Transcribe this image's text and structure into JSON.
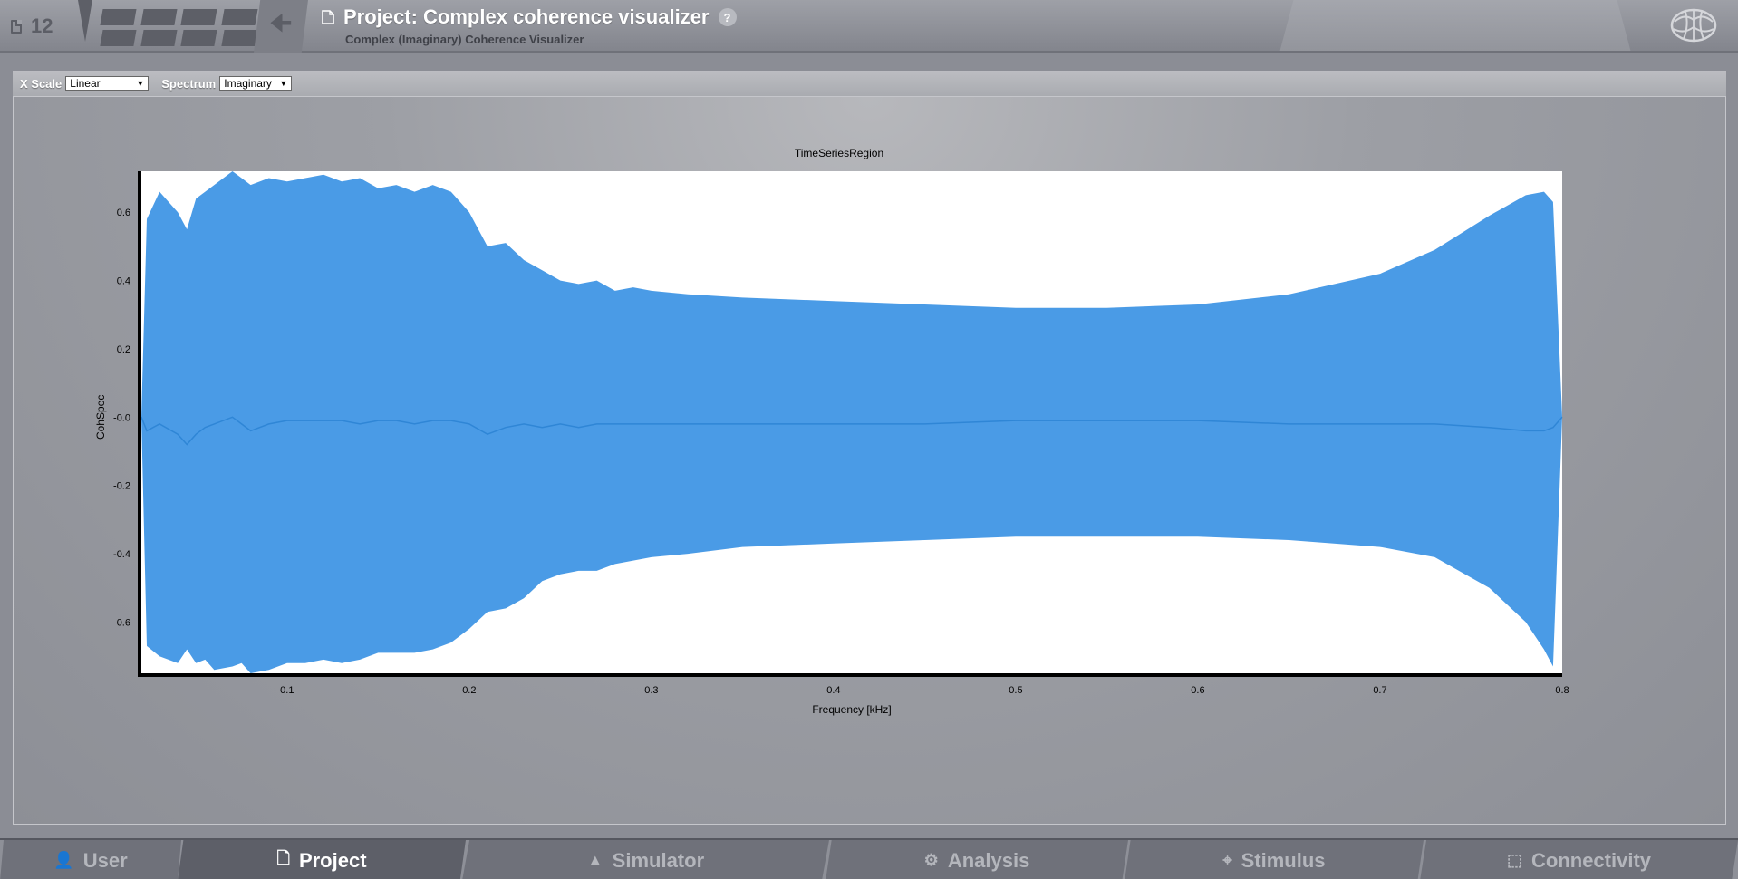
{
  "header": {
    "counter": "12",
    "title": "Project: Complex coherence visualizer",
    "help_label": "?",
    "subtitle": "Complex (Imaginary) Coherence Visualizer"
  },
  "toolbar": {
    "xscale_label": "X Scale",
    "xscale_value": "Linear",
    "spectrum_label": "Spectrum",
    "spectrum_value": "Imaginary"
  },
  "bottom_nav": [
    {
      "label": "User",
      "icon": "user-icon",
      "active": false
    },
    {
      "label": "Project",
      "icon": "document-icon",
      "active": true
    },
    {
      "label": "Simulator",
      "icon": "rocket-icon",
      "active": false
    },
    {
      "label": "Analysis",
      "icon": "gear-icon",
      "active": false
    },
    {
      "label": "Stimulus",
      "icon": "pin-icon",
      "active": false
    },
    {
      "label": "Connectivity",
      "icon": "network-icon",
      "active": false
    }
  ],
  "colors": {
    "fill": "#4a9be6",
    "mean_line": "#2f86d6",
    "axis": "#000000"
  },
  "chart_data": {
    "type": "area",
    "title": "TimeSeriesRegion",
    "xlabel": "Frequency [kHz]",
    "ylabel": "CohSpec",
    "xlim": [
      0.02,
      0.8
    ],
    "ylim": [
      -0.75,
      0.72
    ],
    "x_ticks": [
      "0.1",
      "0.2",
      "0.3",
      "0.4",
      "0.5",
      "0.6",
      "0.7",
      "0.8"
    ],
    "y_ticks": [
      "0.6",
      "0.4",
      "0.2",
      "-0.0",
      "-0.2",
      "-0.4",
      "-0.6"
    ],
    "x": [
      0.02,
      0.023,
      0.03,
      0.04,
      0.045,
      0.05,
      0.055,
      0.06,
      0.07,
      0.075,
      0.08,
      0.09,
      0.1,
      0.11,
      0.12,
      0.13,
      0.14,
      0.15,
      0.16,
      0.17,
      0.18,
      0.19,
      0.2,
      0.21,
      0.22,
      0.23,
      0.24,
      0.25,
      0.26,
      0.27,
      0.28,
      0.29,
      0.3,
      0.32,
      0.35,
      0.4,
      0.45,
      0.5,
      0.55,
      0.6,
      0.65,
      0.7,
      0.73,
      0.76,
      0.78,
      0.79,
      0.795,
      0.8
    ],
    "upper": [
      0.0,
      0.58,
      0.66,
      0.6,
      0.55,
      0.64,
      0.66,
      0.68,
      0.72,
      0.7,
      0.68,
      0.7,
      0.69,
      0.7,
      0.71,
      0.69,
      0.7,
      0.67,
      0.68,
      0.66,
      0.68,
      0.66,
      0.6,
      0.5,
      0.51,
      0.46,
      0.43,
      0.4,
      0.39,
      0.4,
      0.37,
      0.38,
      0.37,
      0.36,
      0.35,
      0.34,
      0.33,
      0.32,
      0.32,
      0.33,
      0.36,
      0.42,
      0.49,
      0.59,
      0.65,
      0.66,
      0.63,
      0.0
    ],
    "mean": [
      0.0,
      -0.04,
      -0.02,
      -0.05,
      -0.08,
      -0.05,
      -0.03,
      -0.02,
      0.0,
      -0.02,
      -0.04,
      -0.02,
      -0.01,
      -0.01,
      -0.01,
      -0.01,
      -0.02,
      -0.01,
      -0.01,
      -0.02,
      -0.01,
      -0.01,
      -0.02,
      -0.05,
      -0.03,
      -0.02,
      -0.03,
      -0.02,
      -0.03,
      -0.02,
      -0.02,
      -0.02,
      -0.02,
      -0.02,
      -0.02,
      -0.02,
      -0.02,
      -0.01,
      -0.01,
      -0.01,
      -0.02,
      -0.02,
      -0.02,
      -0.03,
      -0.04,
      -0.04,
      -0.03,
      0.0
    ],
    "lower": [
      0.0,
      -0.67,
      -0.7,
      -0.72,
      -0.68,
      -0.72,
      -0.71,
      -0.74,
      -0.73,
      -0.72,
      -0.75,
      -0.74,
      -0.72,
      -0.72,
      -0.71,
      -0.72,
      -0.71,
      -0.69,
      -0.69,
      -0.69,
      -0.68,
      -0.66,
      -0.62,
      -0.57,
      -0.56,
      -0.53,
      -0.48,
      -0.46,
      -0.45,
      -0.45,
      -0.43,
      -0.42,
      -0.41,
      -0.4,
      -0.38,
      -0.37,
      -0.36,
      -0.35,
      -0.35,
      -0.35,
      -0.36,
      -0.38,
      -0.41,
      -0.5,
      -0.6,
      -0.68,
      -0.73,
      0.0
    ]
  }
}
